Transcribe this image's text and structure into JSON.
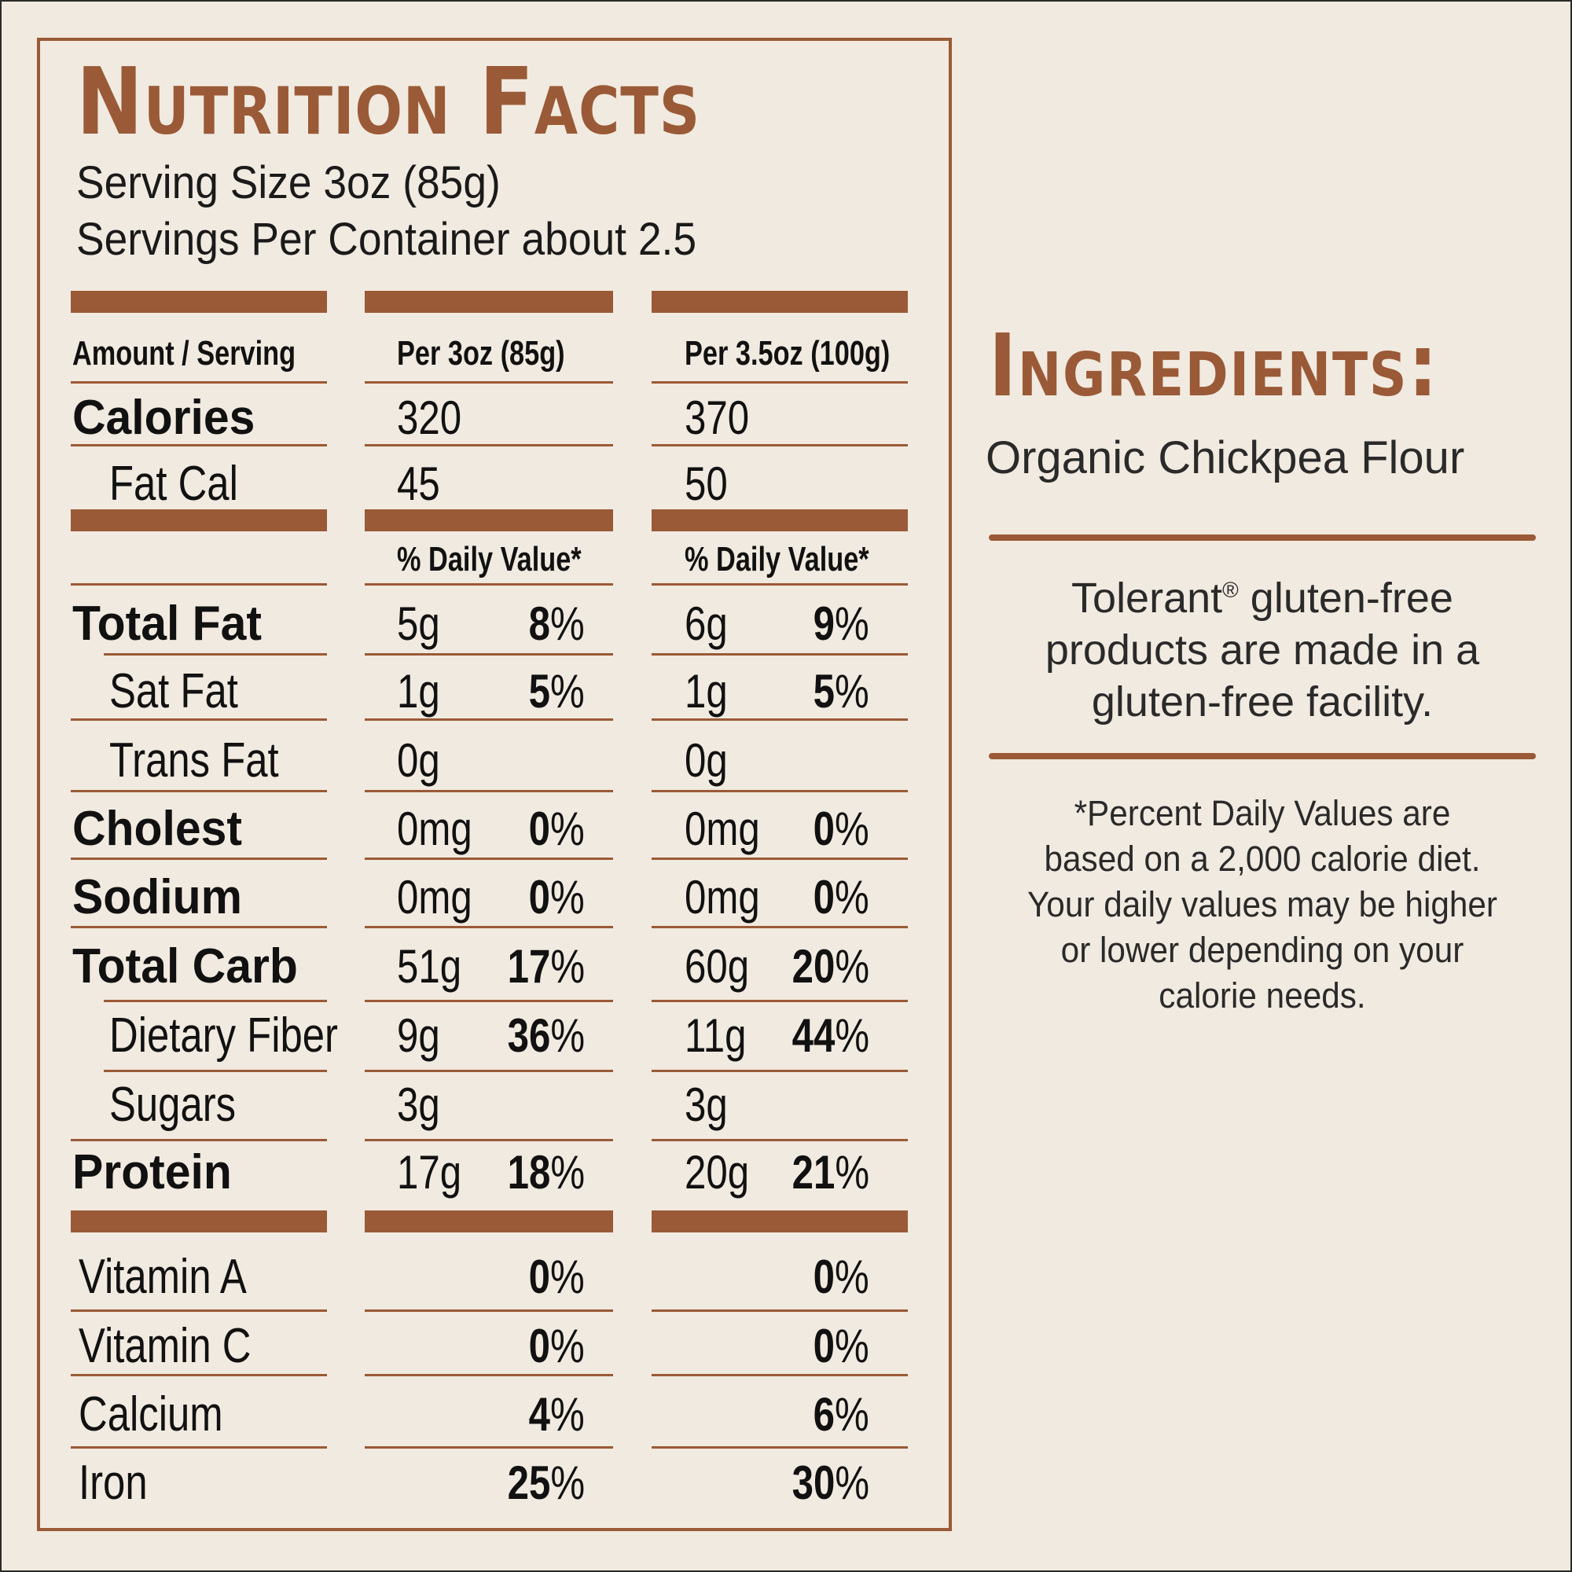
{
  "nutrition": {
    "title": "Nutrition Facts",
    "serving_size": "Serving Size 3oz (85g)",
    "servings_per_container": "Servings Per Container about 2.5",
    "headers": {
      "label": "Amount / Serving",
      "col1": "Per 3oz (85g)",
      "col2": "Per 3.5oz (100g)"
    },
    "calories": {
      "label": "Calories",
      "col1": "320",
      "col2": "370"
    },
    "fat_cal": {
      "label": "Fat Cal",
      "col1": "45",
      "col2": "50"
    },
    "daily_value_header": "% Daily Value*",
    "nutrients": [
      {
        "label": "Total Fat",
        "col1_amount": "5g",
        "col1_pct": "8",
        "col2_amount": "6g",
        "col2_pct": "9"
      },
      {
        "label": "Sat Fat",
        "col1_amount": "1g",
        "col1_pct": "5",
        "col2_amount": "1g",
        "col2_pct": "5"
      },
      {
        "label": "Trans Fat",
        "col1_amount": "0g",
        "col1_pct": "",
        "col2_amount": "0g",
        "col2_pct": ""
      },
      {
        "label": "Cholest",
        "col1_amount": "0mg",
        "col1_pct": "0",
        "col2_amount": "0mg",
        "col2_pct": "0"
      },
      {
        "label": "Sodium",
        "col1_amount": "0mg",
        "col1_pct": "0",
        "col2_amount": "0mg",
        "col2_pct": "0"
      },
      {
        "label": "Total Carb",
        "col1_amount": "51g",
        "col1_pct": "17",
        "col2_amount": "60g",
        "col2_pct": "20"
      },
      {
        "label": "Dietary Fiber",
        "col1_amount": "9g",
        "col1_pct": "36",
        "col2_amount": "11g",
        "col2_pct": "44"
      },
      {
        "label": "Sugars",
        "col1_amount": "3g",
        "col1_pct": "",
        "col2_amount": "3g",
        "col2_pct": ""
      },
      {
        "label": "Protein",
        "col1_amount": "17g",
        "col1_pct": "18",
        "col2_amount": "20g",
        "col2_pct": "21"
      }
    ],
    "vitamins": [
      {
        "label": "Vitamin A",
        "col1_pct": "0",
        "col2_pct": "0"
      },
      {
        "label": "Vitamin C",
        "col1_pct": "0",
        "col2_pct": "0"
      },
      {
        "label": "Calcium",
        "col1_pct": "4",
        "col2_pct": "6"
      },
      {
        "label": "Iron",
        "col1_pct": "25",
        "col2_pct": "30"
      }
    ],
    "percent_sign": "%"
  },
  "ingredients": {
    "title": "Ingredients:",
    "text": "Organic Chickpea Flour"
  },
  "notes": {
    "brand": "Tolerant",
    "registered": "®",
    "gluten_free_line1_rest": " gluten-free",
    "gluten_free_line2": "products are made in a",
    "gluten_free_line3": "gluten-free facility.",
    "daily_value_lines": [
      "*Percent Daily Values are",
      "based on  a 2,000 calorie diet.",
      "Your daily values may be higher",
      "or lower depending on your",
      "calorie needs."
    ]
  },
  "colors": {
    "accent": "#9a5a37",
    "background": "#f1eae0",
    "text": "#111111"
  }
}
